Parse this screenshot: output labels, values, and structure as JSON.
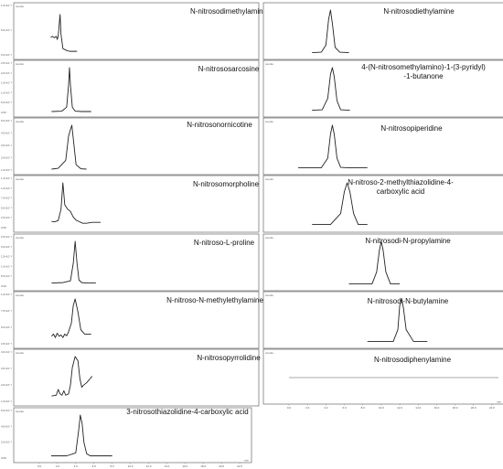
{
  "chart_data": [
    {
      "type": "line",
      "title": "N-nitrosodimethylamine",
      "y_axis_label": "counts",
      "y_ticks": [
        "1.0×10⁻³",
        "5.0×10⁻²",
        "2.0×10⁻²"
      ],
      "series": [
        {
          "x": [
            1.2,
            1.4,
            1.6,
            1.8,
            1.9,
            2.0,
            2.2,
            2.3,
            2.5,
            2.7,
            2.9,
            3.2,
            3.5,
            4
          ],
          "y": [
            0.38,
            0.4,
            0.37,
            0.4,
            0.33,
            0.4,
            0.9,
            0.45,
            0.12,
            0.1,
            0.08,
            0.06,
            0.06,
            0.06
          ]
        }
      ]
    },
    {
      "type": "line",
      "title": "N-nitrosodiethylamine",
      "y_axis_label": "",
      "series": [
        {
          "x": [
            2.5,
            3.5,
            4.0,
            4.3,
            4.5,
            4.7,
            5.0,
            5.5,
            6.5
          ],
          "y": [
            0.03,
            0.04,
            0.2,
            0.8,
            1.0,
            0.7,
            0.15,
            0.04,
            0.03
          ]
        }
      ]
    },
    {
      "type": "line",
      "title": "N-nitrososarcosine",
      "y_axis_label": "counts",
      "y_ticks": [
        "2.5×10⁻²",
        "2.0×10⁻²",
        "1.5×10⁻²",
        "1.0×10⁻²",
        "5.0×10⁻³",
        "0.00"
      ],
      "series": [
        {
          "x": [
            1.3,
            2.4,
            2.9,
            3.1,
            3.2,
            3.3,
            3.5,
            3.8,
            4.5,
            5.5
          ],
          "y": [
            0.0,
            0.01,
            0.1,
            0.6,
            1.0,
            0.6,
            0.1,
            0.01,
            0.0,
            0.0
          ]
        }
      ]
    },
    {
      "type": "line",
      "title": "4-(N-nitrosomethylamino)-1-(3-pyridyl)-1-butanone",
      "y_axis_label": "counts",
      "series": [
        {
          "x": [
            2.5,
            3.6,
            4.2,
            4.5,
            4.7,
            4.9,
            5.2,
            5.6,
            6.6
          ],
          "y": [
            0.03,
            0.04,
            0.3,
            0.85,
            1.0,
            0.8,
            0.25,
            0.04,
            0.03
          ]
        }
      ]
    },
    {
      "type": "line",
      "title": "N-nitrosonornicotine",
      "y_axis_label": "counts",
      "y_ticks": [
        "5.0×10⁻²",
        "4.0×10⁻²",
        "3.0×10⁻²",
        "2.0×10⁻²",
        "1.0×10⁻²"
      ],
      "series": [
        {
          "x": [
            1.3,
            2.0,
            2.8,
            3.1,
            3.3,
            3.45,
            3.6,
            3.9,
            4.4,
            5.0
          ],
          "y": [
            0.0,
            0.02,
            0.2,
            0.75,
            0.9,
            1.0,
            0.7,
            0.1,
            0.01,
            0.0
          ]
        }
      ]
    },
    {
      "type": "line",
      "title": "N-nitrosopiperidine",
      "y_axis_label": "counts",
      "series": [
        {
          "x": [
            1.0,
            3.5,
            4.2,
            4.5,
            4.7,
            4.9,
            5.2,
            5.6,
            6.5,
            8.5
          ],
          "y": [
            0.03,
            0.03,
            0.25,
            0.8,
            1.0,
            0.8,
            0.25,
            0.04,
            0.03,
            0.03
          ]
        }
      ]
    },
    {
      "type": "line",
      "title": "N-nitrosomorpholine",
      "y_axis_label": "counts",
      "y_ticks": [
        "1.2×10⁻²",
        "1.0×10⁻²",
        "7.5×10⁻³",
        "5.0×10⁻³",
        "2.5×10⁻³",
        "0.00"
      ],
      "series": [
        {
          "x": [
            1.3,
            1.6,
            2.0,
            2.3,
            2.5,
            2.7,
            3.0,
            3.3,
            3.6,
            3.9,
            4.2,
            4.6,
            5.0,
            5.6,
            6.5
          ],
          "y": [
            0.12,
            0.11,
            0.14,
            0.4,
            1.0,
            0.5,
            0.4,
            0.35,
            0.22,
            0.15,
            0.12,
            0.08,
            0.08,
            0.1,
            0.1
          ]
        }
      ]
    },
    {
      "type": "line",
      "title": "N-nitroso-2-methylthiazolidine-4-carboxylic acid",
      "y_axis_label": "counts",
      "series": [
        {
          "x": [
            2.5,
            4.5,
            5.6,
            6.0,
            6.3,
            6.6,
            7.0,
            7.5,
            8.5
          ],
          "y": [
            0.05,
            0.05,
            0.3,
            0.8,
            1.0,
            0.8,
            0.3,
            0.05,
            0.05
          ]
        }
      ]
    },
    {
      "type": "line",
      "title": "N-nitroso-L-proline",
      "y_axis_label": "counts",
      "y_ticks": [
        "2.5×10⁻²",
        "2.0×10⁻²",
        "1.5×10⁻²",
        "1.0×10⁻²",
        "5.0×10⁻³",
        "0.00"
      ],
      "series": [
        {
          "x": [
            1.3,
            2.5,
            3.3,
            3.6,
            3.8,
            4.0,
            4.2,
            4.5,
            5.0,
            6.0
          ],
          "y": [
            0.05,
            0.06,
            0.1,
            0.5,
            1.0,
            0.5,
            0.12,
            0.06,
            0.05,
            0.05
          ]
        }
      ]
    },
    {
      "type": "line",
      "title": "N-nitrosodi-N-propylamine",
      "y_axis_label": "counts",
      "series": [
        {
          "x": [
            6.5,
            9.0,
            9.5,
            9.8,
            10.0,
            10.2,
            10.5,
            11.0,
            12.0
          ],
          "y": [
            0.03,
            0.03,
            0.3,
            0.8,
            1.0,
            0.8,
            0.3,
            0.03,
            0.03
          ]
        }
      ]
    },
    {
      "type": "line",
      "title": "N-nitroso-N-methylethylamine",
      "y_axis_label": "counts",
      "y_ticks": [
        "1.0×10⁻²",
        "7.5×10⁻³",
        "5.0×10⁻³",
        "2.5×10⁻³"
      ],
      "series": [
        {
          "x": [
            1.3,
            1.5,
            1.7,
            1.9,
            2.1,
            2.3,
            2.5,
            2.7,
            2.9,
            3.1,
            3.4,
            3.6,
            3.8,
            4.1,
            4.4,
            4.8,
            5.5
          ],
          "y": [
            0.15,
            0.2,
            0.12,
            0.22,
            0.15,
            0.18,
            0.12,
            0.2,
            0.16,
            0.25,
            0.45,
            0.85,
            1.0,
            0.7,
            0.3,
            0.2,
            0.2
          ]
        }
      ]
    },
    {
      "type": "line",
      "title": "N-nitrosodi-N-butylamine",
      "y_axis_label": "counts",
      "series": [
        {
          "x": [
            8.5,
            11.3,
            11.8,
            12.0,
            12.2,
            12.4,
            12.7,
            13.5,
            15.0
          ],
          "y": [
            0.03,
            0.03,
            0.3,
            0.85,
            1.0,
            0.8,
            0.3,
            0.03,
            0.03
          ]
        }
      ]
    },
    {
      "type": "line",
      "title": "N-nitrosopyrrolidine",
      "y_axis_label": "counts",
      "y_ticks": [
        "4.0×10⁻²",
        "3.0×10⁻²",
        "2.0×10⁻²",
        "1.0×10⁻²"
      ],
      "series": [
        {
          "x": [
            1.3,
            1.8,
            2.0,
            2.2,
            2.4,
            2.6,
            2.8,
            3.1,
            3.3,
            3.5,
            3.8,
            4.1,
            4.3,
            4.5,
            4.7,
            5.0,
            5.2,
            5.4,
            5.6
          ],
          "y": [
            0.1,
            0.12,
            0.25,
            0.15,
            0.12,
            0.22,
            0.12,
            0.15,
            0.35,
            0.75,
            1.0,
            0.9,
            0.5,
            0.3,
            0.35,
            0.4,
            0.45,
            0.5,
            0.55
          ]
        }
      ]
    },
    {
      "type": "line",
      "title": "N-nitrosodiphenylamine",
      "y_axis_label": "counts",
      "flat_signal": true,
      "x_ticks": [
        "0.0",
        "2.0",
        "4.0",
        "6.0",
        "8.0",
        "10.0",
        "12.0",
        "14.0",
        "16.0",
        "18.0",
        "20.0",
        "22.0"
      ],
      "x_unit": "min",
      "series": [
        {
          "x": [
            0,
            22.7
          ],
          "y": [
            0.5,
            0.5
          ]
        }
      ]
    },
    {
      "type": "line",
      "title": "3-nitrosothiazolidine-4-carboxylic acid",
      "y_axis_label": "counts",
      "y_ticks": [
        "6.0×10⁻²",
        "4.0×10⁻²",
        "2.0×10⁻²",
        "0.00"
      ],
      "x_ticks": [
        "0.0",
        "2.0",
        "4.0",
        "6.0",
        "8.0",
        "10.0",
        "12.0",
        "14.0",
        "16.0",
        "18.0",
        "20.0",
        "22.0"
      ],
      "x_unit": "min",
      "series": [
        {
          "x": [
            1.3,
            3.0,
            4.0,
            4.3,
            4.5,
            4.7,
            4.9,
            5.2,
            5.6,
            6.5,
            8.0
          ],
          "y": [
            0.03,
            0.03,
            0.1,
            0.6,
            1.0,
            0.8,
            0.35,
            0.08,
            0.03,
            0.03,
            0.03
          ]
        }
      ]
    }
  ]
}
